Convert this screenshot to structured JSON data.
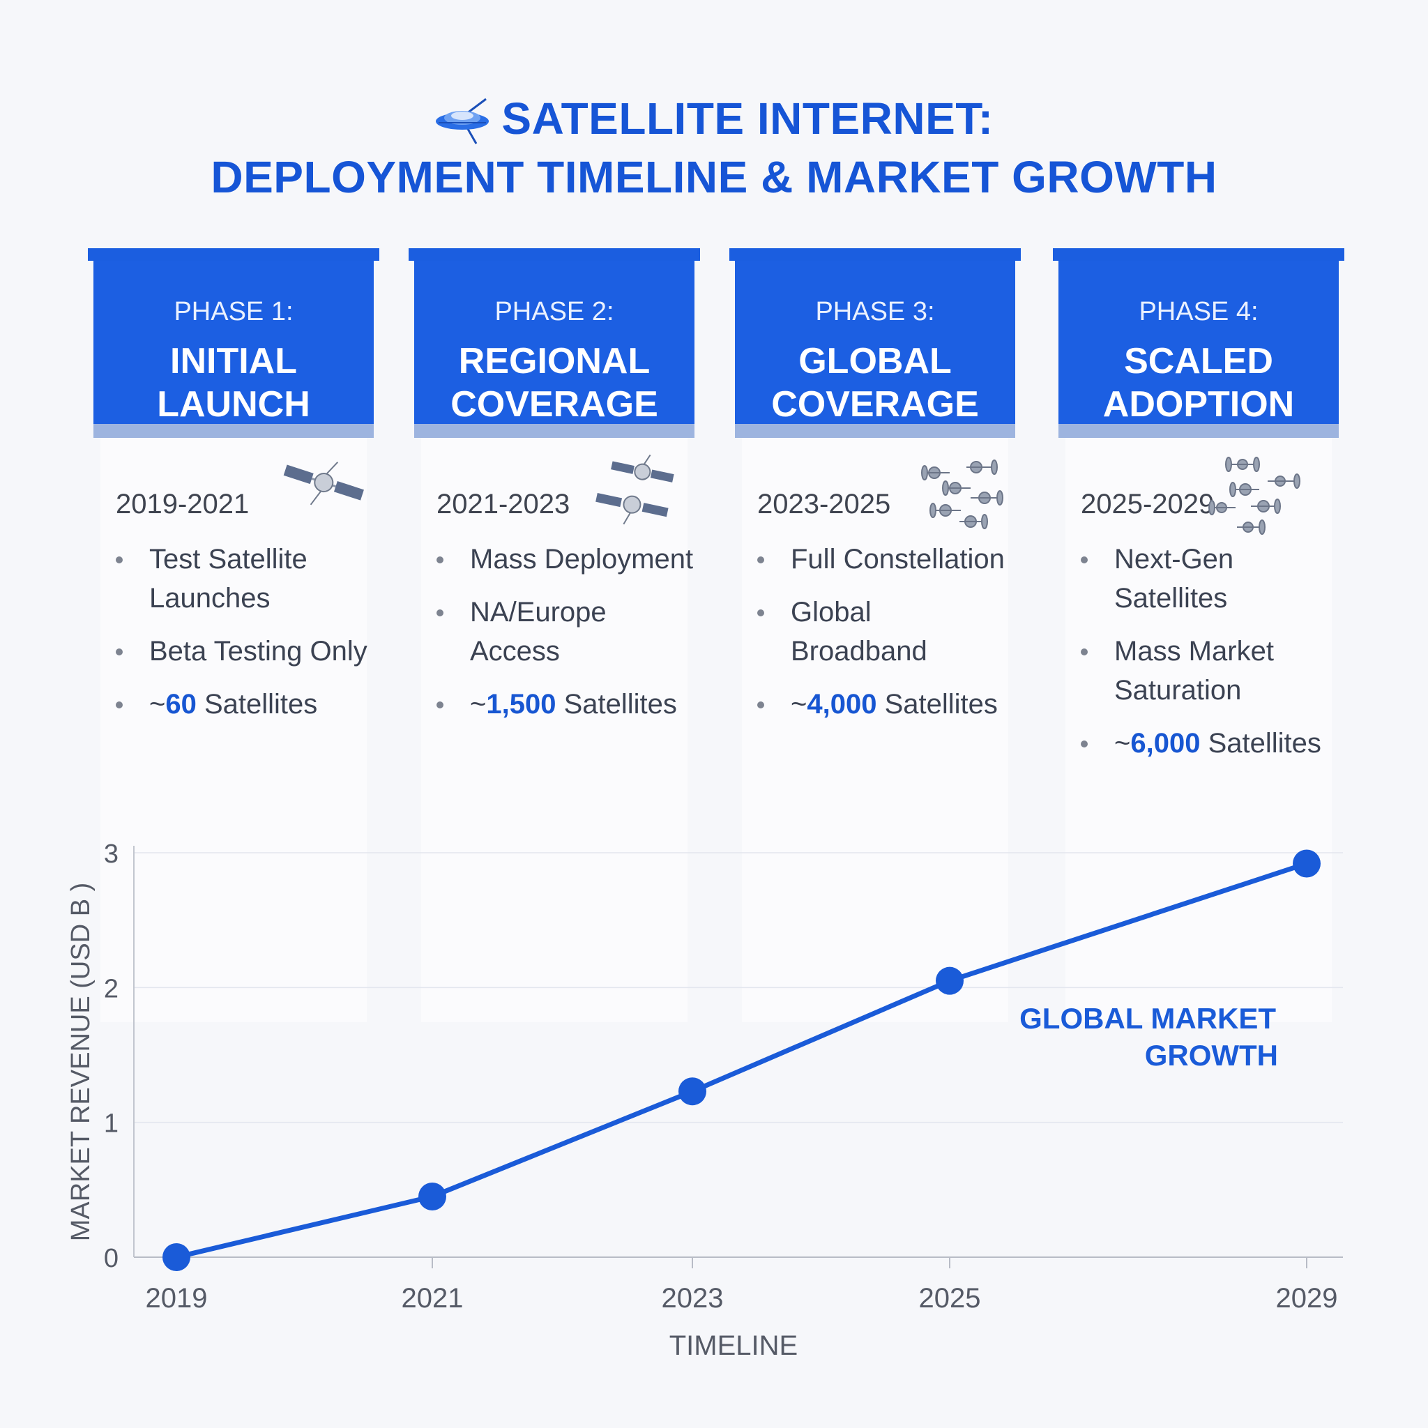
{
  "title": {
    "line1": "SATELLITE INTERNET:",
    "line2": "DEPLOYMENT TIMELINE & MARKET GROWTH",
    "logo_icon": "satellite-logo-icon"
  },
  "phases": [
    {
      "number_label": "PHASE 1:",
      "name_line1": "INITIAL",
      "name_line2": "LAUNCH",
      "years": "2019-2021",
      "icon": "single-satellite-icon",
      "bullets": [
        {
          "text": "Test Satellite Launches"
        },
        {
          "text": "Beta Testing Only"
        },
        {
          "prefix": "~",
          "number": "60",
          "suffix": " Satellites"
        }
      ]
    },
    {
      "number_label": "PHASE 2:",
      "name_line1": "REGIONAL",
      "name_line2": "COVERAGE",
      "years": "2021-2023",
      "icon": "two-satellites-icon",
      "bullets": [
        {
          "text": "Mass Deployment"
        },
        {
          "text": "NA/Europe Access"
        },
        {
          "prefix": "~",
          "number": "1,500",
          "suffix": " Satellites"
        }
      ]
    },
    {
      "number_label": "PHASE 3:",
      "name_line1": "GLOBAL",
      "name_line2": "COVERAGE",
      "years": "2023-2025",
      "icon": "satellite-cluster-icon",
      "bullets": [
        {
          "text": "Full Constellation"
        },
        {
          "text": "Global Broadband"
        },
        {
          "prefix": "~",
          "number": "4,000",
          "suffix": " Satellites"
        }
      ]
    },
    {
      "number_label": "PHASE 4:",
      "name_line1": "SCALED",
      "name_line2": "ADOPTION",
      "years": "2025-2029",
      "icon": "satellite-swarm-icon",
      "bullets": [
        {
          "text": "Next-Gen Satellites"
        },
        {
          "text": "Mass Market Saturation"
        },
        {
          "prefix": "~",
          "number": "6,000",
          "suffix": " Satellites"
        }
      ]
    }
  ],
  "colors": {
    "accent": "#1c5fe2",
    "line": "#1a5bd8",
    "grid": "#e3e6ee",
    "axis_text": "#555a66"
  },
  "chart_data": {
    "type": "line",
    "x": [
      "2019",
      "2021",
      "2023",
      "2025",
      "2029"
    ],
    "series": [
      {
        "values": [
          0.0,
          0.45,
          1.23,
          2.05,
          2.92
        ]
      }
    ],
    "annotation": {
      "line1": "GLOBAL MARKET",
      "line2": "GROWTH"
    },
    "xlabel": "TIMELINE",
    "ylabel": "MARKET REVENUE (USD B )",
    "ylim": [
      0,
      3
    ],
    "yticks": [
      0,
      1,
      2,
      3
    ],
    "grid": true
  }
}
